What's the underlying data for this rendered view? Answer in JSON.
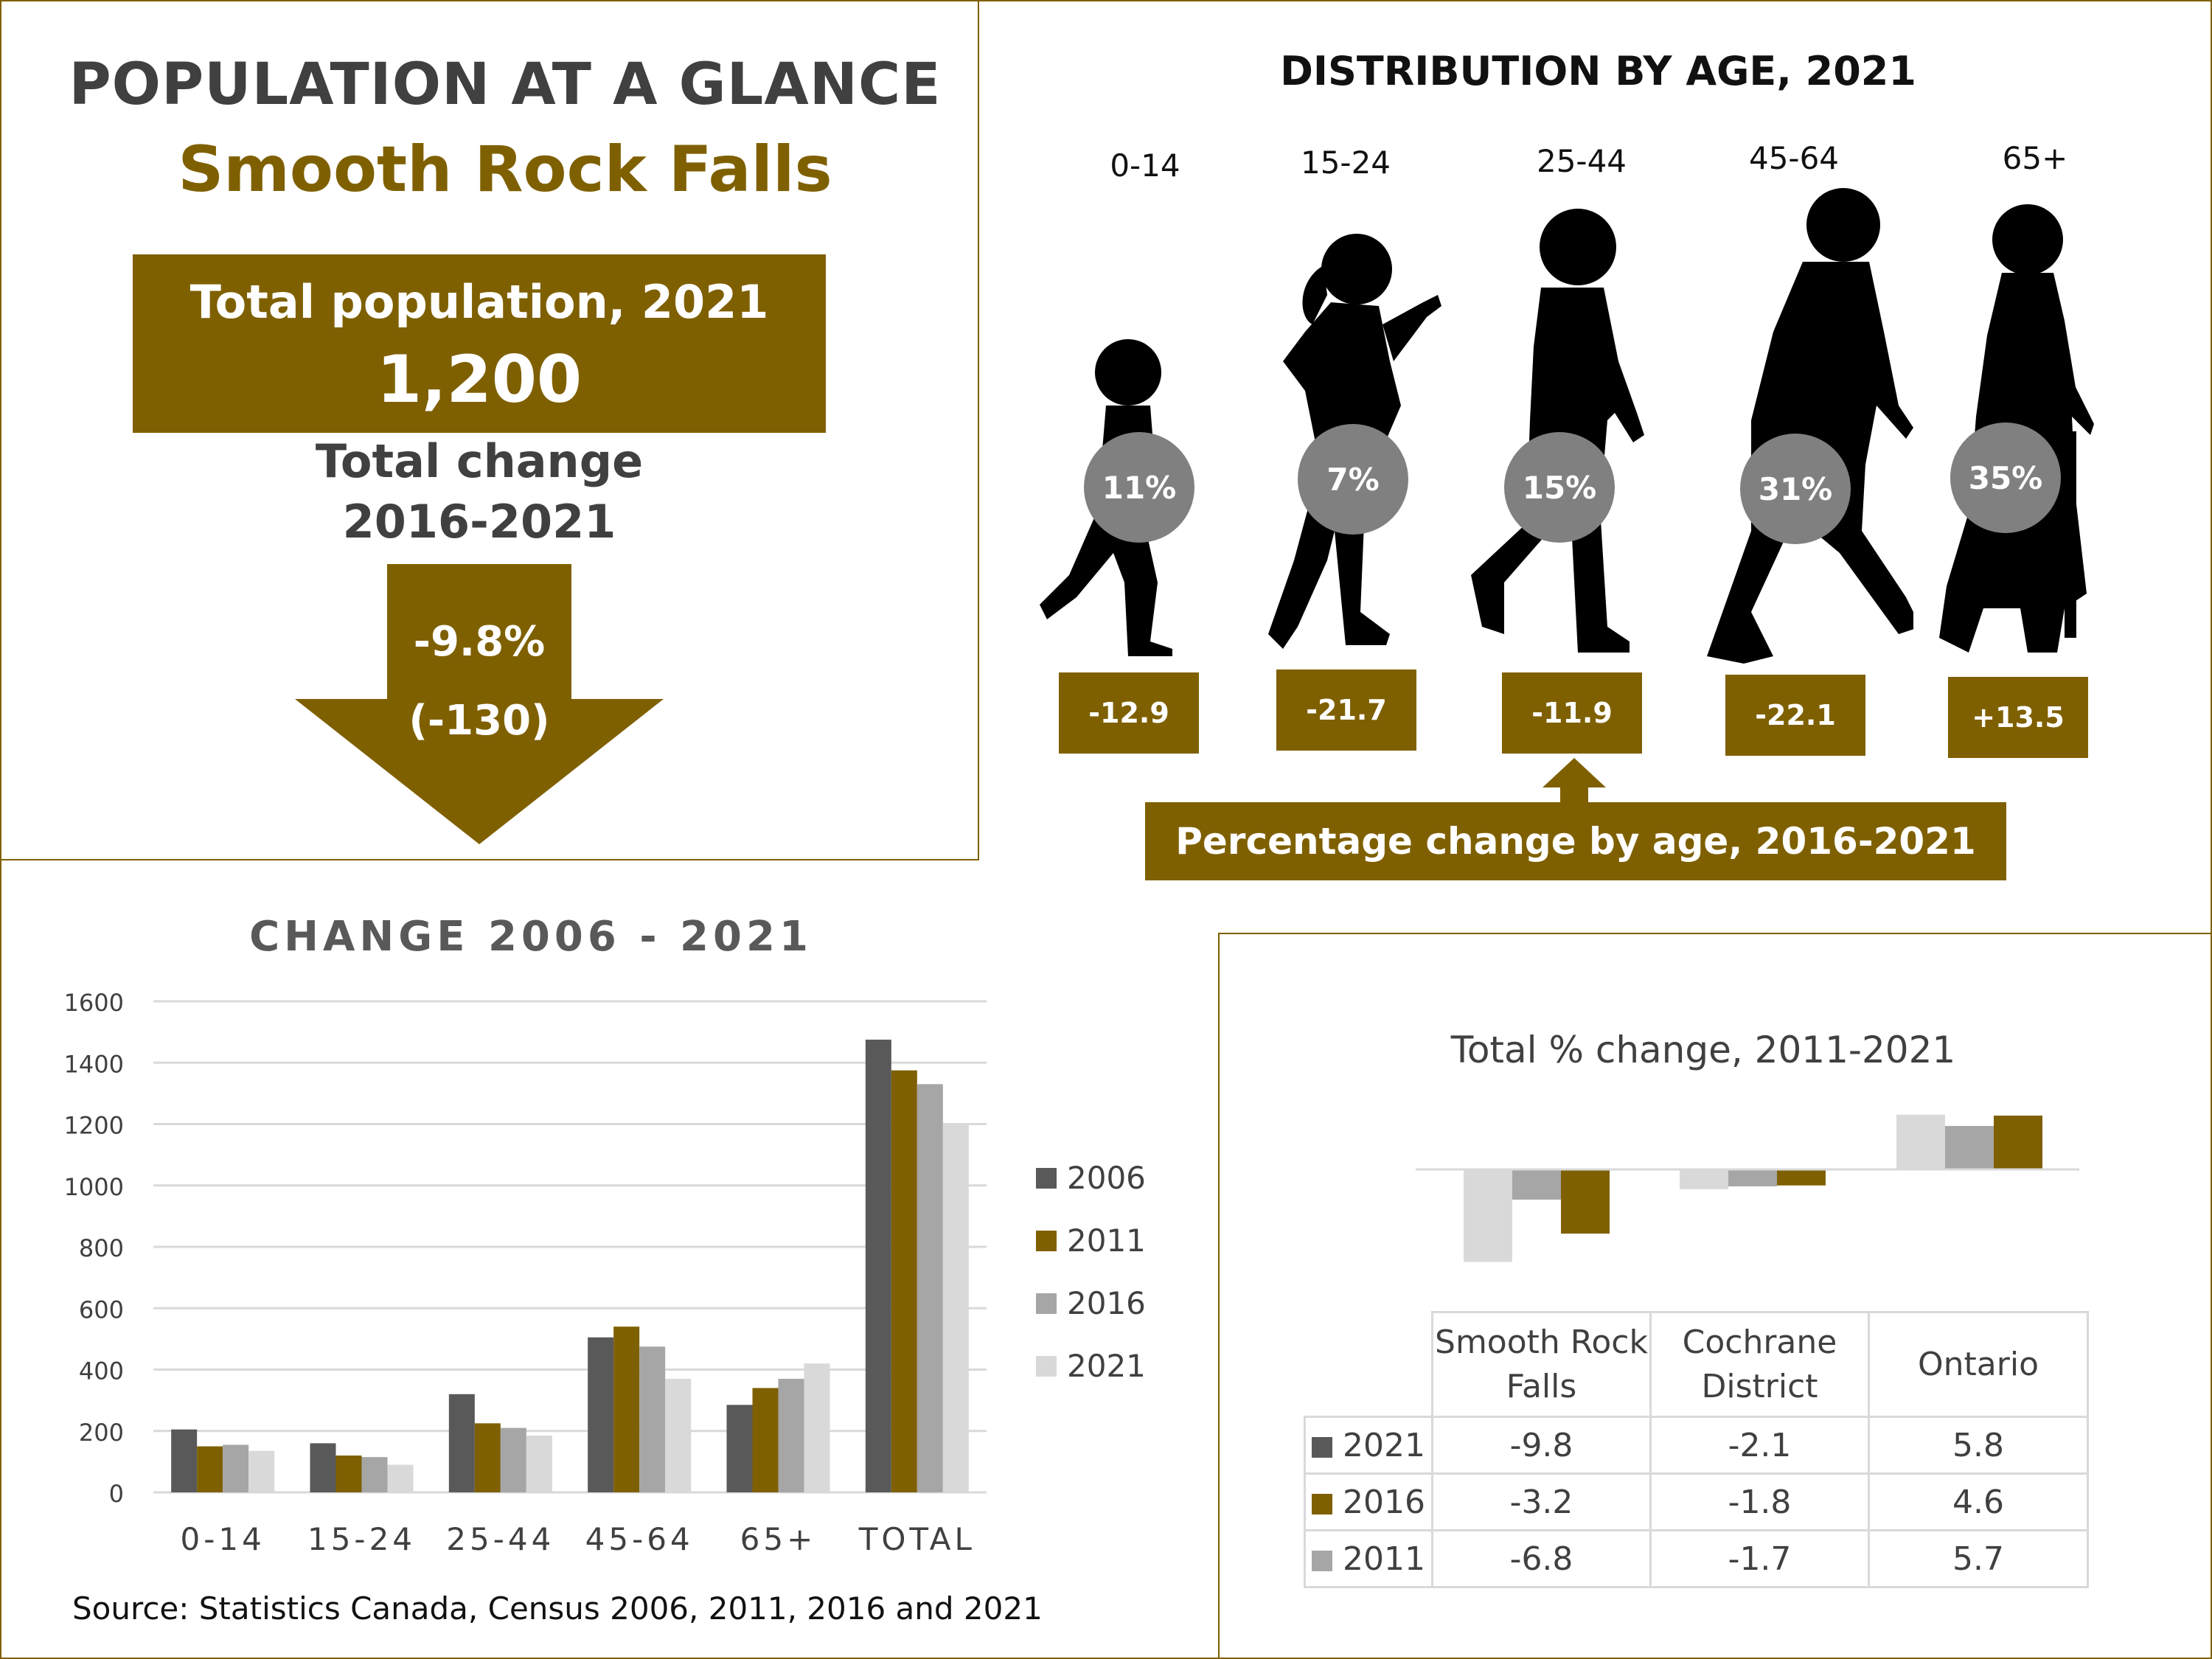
{
  "title_block": {
    "heading": "POPULATION AT A GLANCE",
    "place": "Smooth Rock Falls",
    "total_pop_label": "Total population, 2021",
    "total_pop_value": "1,200",
    "total_change_label_line1": "Total change",
    "total_change_label_line2": "2016-2021",
    "total_change_pct": "-9.8%",
    "total_change_abs": "(-130)"
  },
  "age_distribution": {
    "heading": "DISTRIBUTION BY AGE, 2021",
    "groups": [
      {
        "label": "0-14",
        "share": "11%",
        "change": "-12.9",
        "figure": "child-silhouette"
      },
      {
        "label": "15-24",
        "share": "7%",
        "change": "-21.7",
        "figure": "teen-silhouette"
      },
      {
        "label": "25-44",
        "share": "15%",
        "change": "-11.9",
        "figure": "adult-silhouette"
      },
      {
        "label": "45-64",
        "share": "31%",
        "change": "-22.1",
        "figure": "middle-aged-silhouette"
      },
      {
        "label": "65+",
        "share": "35%",
        "change": "+13.5",
        "figure": "senior-silhouette"
      }
    ],
    "change_caption": "Percentage change by age, 2016-2021"
  },
  "colors": {
    "gold": "#7f6000",
    "s2006": "#595959",
    "s2011": "#7f6000",
    "s2016": "#a6a6a6",
    "s2021": "#d9d9d9",
    "silhouette": "#000000",
    "circle": "#808080"
  },
  "source": "Source: Statistics Canada, Census 2006, 2011, 2016 and 2021",
  "chart_data": [
    {
      "type": "bar",
      "title": "CHANGE 2006 - 2021",
      "categories": [
        "0-14",
        "15-24",
        "25-44",
        "45-64",
        "65+",
        "TOTAL"
      ],
      "series": [
        {
          "name": "2006",
          "values": [
            205,
            160,
            320,
            505,
            285,
            1475
          ]
        },
        {
          "name": "2011",
          "values": [
            150,
            120,
            225,
            540,
            340,
            1375
          ]
        },
        {
          "name": "2016",
          "values": [
            155,
            115,
            210,
            475,
            370,
            1330
          ]
        },
        {
          "name": "2021",
          "values": [
            135,
            90,
            185,
            370,
            420,
            1200
          ]
        }
      ],
      "yticks": [
        "0",
        "200",
        "400",
        "600",
        "800",
        "1000",
        "1200",
        "1400",
        "1600"
      ],
      "ylim": [
        0,
        1600
      ],
      "grid": true,
      "legend_position": "right"
    },
    {
      "type": "bar",
      "title": "Total % change, 2011-2021",
      "categories": [
        "Smooth Rock Falls",
        "Cochrane District",
        "Ontario"
      ],
      "category_header_lines": [
        [
          "Smooth Rock",
          "Falls"
        ],
        [
          "Cochrane",
          "District"
        ],
        [
          "Ontario"
        ]
      ],
      "series": [
        {
          "name": "2021",
          "values": [
            -9.8,
            -2.1,
            5.8
          ],
          "display": [
            "-9.8",
            "-2.1",
            "5.8"
          ]
        },
        {
          "name": "2016",
          "values": [
            -3.2,
            -1.8,
            4.6
          ],
          "display": [
            "-3.2",
            "-1.8",
            "4.6"
          ]
        },
        {
          "name": "2011",
          "values": [
            -6.8,
            -1.7,
            5.7
          ],
          "display": [
            "-6.8",
            "-1.7",
            "5.7"
          ]
        }
      ],
      "ylim": [
        -10,
        6
      ],
      "grid": false,
      "legend_position": "data-table"
    }
  ]
}
